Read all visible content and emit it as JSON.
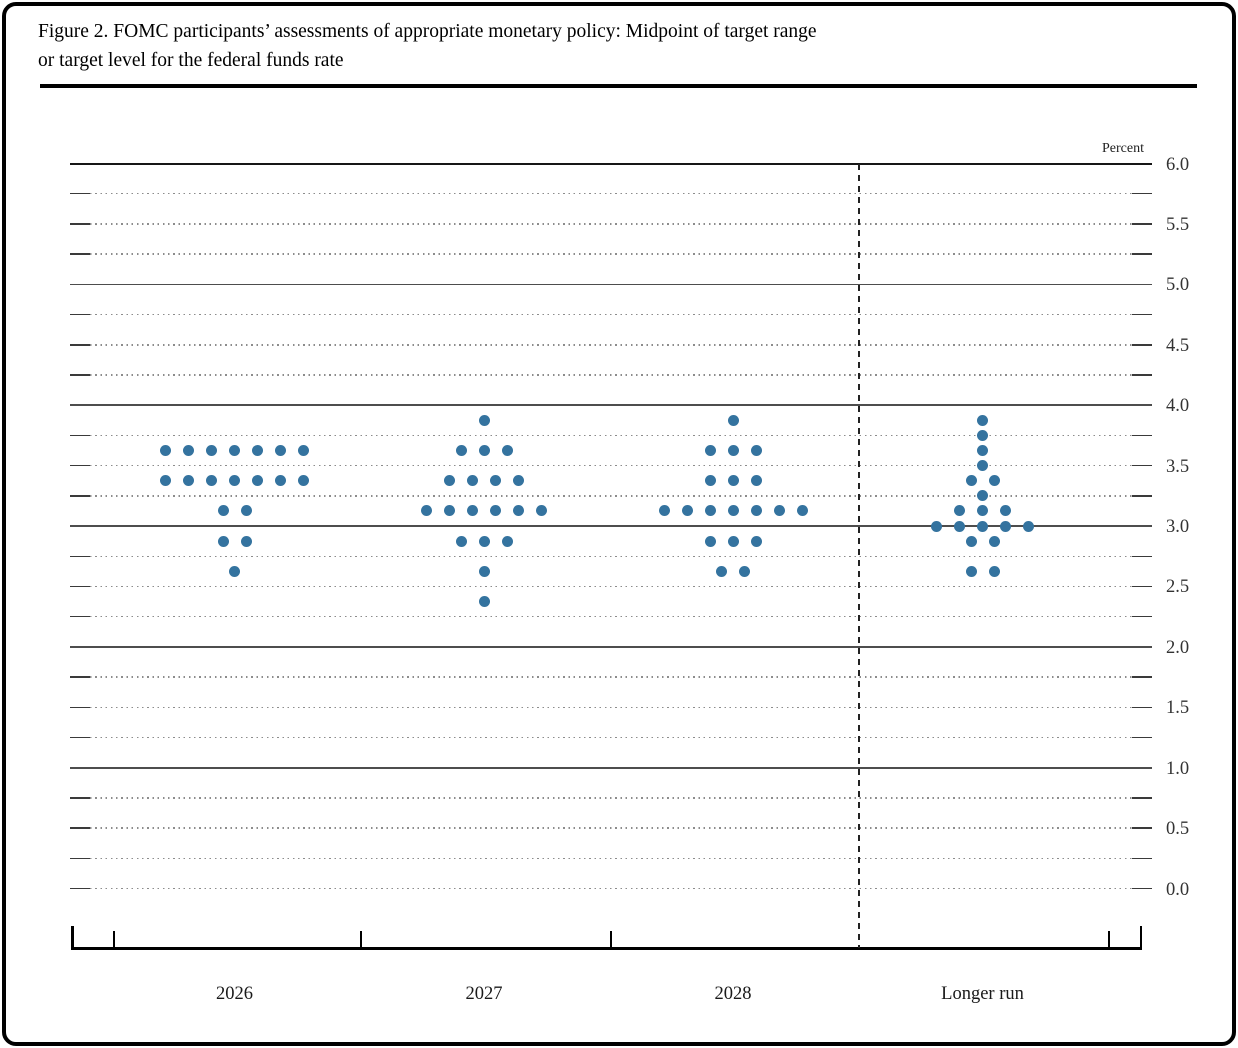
{
  "figure": {
    "title_line1": "Figure 2. FOMC participants’ assessments of appropriate monetary policy: Midpoint of target range",
    "title_line2": "or target level for the federal funds rate"
  },
  "chart_data": {
    "type": "scatter",
    "title": "FOMC participants’ assessments of appropriate monetary policy: Midpoint of target range or target level for the federal funds rate",
    "ylabel": "Percent",
    "ylim": [
      0.0,
      6.0
    ],
    "y_tick_labels": [
      "6.0",
      "5.5",
      "5.0",
      "4.5",
      "4.0",
      "3.5",
      "3.0",
      "2.5",
      "2.0",
      "1.5",
      "1.0",
      "0.5",
      "0.0"
    ],
    "gridline_step": 0.25,
    "solid_gridline_values": [
      6.0,
      5.0,
      4.0,
      3.0,
      2.0,
      1.0
    ],
    "grid": true,
    "legend": null,
    "categories": [
      "2026",
      "2027",
      "2028",
      "Longer run"
    ],
    "separator_before_category": "Longer run",
    "dot_color": "#34739f",
    "participants_per_column": 19,
    "series": [
      {
        "name": "2026",
        "dots": [
          {
            "rate": 3.625,
            "count": 7
          },
          {
            "rate": 3.375,
            "count": 7
          },
          {
            "rate": 3.125,
            "count": 2
          },
          {
            "rate": 2.875,
            "count": 2
          },
          {
            "rate": 2.625,
            "count": 1
          }
        ]
      },
      {
        "name": "2027",
        "dots": [
          {
            "rate": 3.875,
            "count": 1
          },
          {
            "rate": 3.625,
            "count": 3
          },
          {
            "rate": 3.375,
            "count": 4
          },
          {
            "rate": 3.125,
            "count": 6
          },
          {
            "rate": 2.875,
            "count": 3
          },
          {
            "rate": 2.625,
            "count": 1
          },
          {
            "rate": 2.375,
            "count": 1
          }
        ]
      },
      {
        "name": "2028",
        "dots": [
          {
            "rate": 3.875,
            "count": 1
          },
          {
            "rate": 3.625,
            "count": 3
          },
          {
            "rate": 3.375,
            "count": 3
          },
          {
            "rate": 3.125,
            "count": 7
          },
          {
            "rate": 2.875,
            "count": 3
          },
          {
            "rate": 2.625,
            "count": 2
          }
        ]
      },
      {
        "name": "Longer run",
        "dots": [
          {
            "rate": 3.875,
            "count": 1
          },
          {
            "rate": 3.75,
            "count": 1
          },
          {
            "rate": 3.625,
            "count": 1
          },
          {
            "rate": 3.5,
            "count": 1
          },
          {
            "rate": 3.375,
            "count": 2
          },
          {
            "rate": 3.25,
            "count": 1
          },
          {
            "rate": 3.125,
            "count": 3
          },
          {
            "rate": 3.0,
            "count": 5
          },
          {
            "rate": 2.875,
            "count": 2
          },
          {
            "rate": 2.625,
            "count": 2
          }
        ]
      }
    ]
  }
}
